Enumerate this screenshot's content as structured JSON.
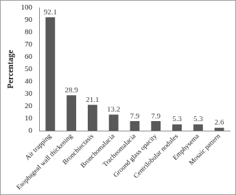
{
  "chart_data": {
    "type": "bar",
    "y_label": "Percentage",
    "categories": [
      "Air trapping",
      "Esophageal wall thickening",
      "Bronchiectasis",
      "Bronchomalacia",
      "Tracheomalacia",
      "Ground glass opacity",
      "Centrilobular nodules",
      "Emphysema",
      "Mosaic pattern"
    ],
    "values": [
      92.1,
      28.9,
      21.1,
      13.2,
      7.9,
      7.9,
      5.3,
      5.3,
      2.6
    ],
    "color": "#595959",
    "ylim": [
      0,
      100
    ],
    "yticks": [
      0,
      10,
      20,
      30,
      40,
      50,
      60,
      70,
      80,
      90,
      100
    ],
    "grid": false,
    "data_labels": true
  }
}
